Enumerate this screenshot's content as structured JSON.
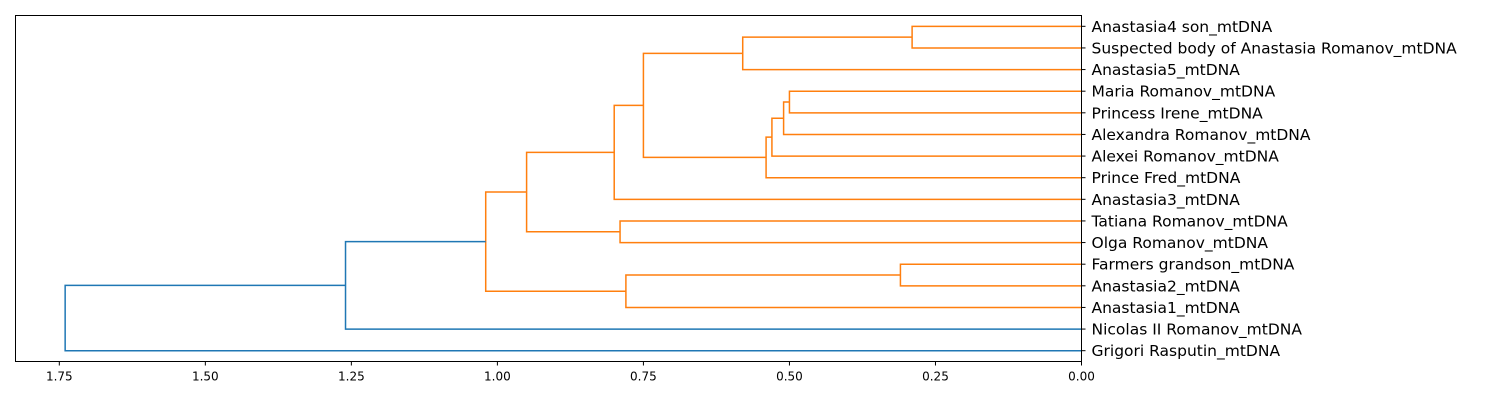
{
  "chart_data": {
    "type": "dendrogram",
    "orientation": "right",
    "title": "",
    "xlabel": "",
    "ylabel": "",
    "xlim": [
      1.825,
      0.0
    ],
    "x_ticks": [
      "1.75",
      "1.50",
      "1.25",
      "1.00",
      "0.75",
      "0.50",
      "0.25",
      "0.00"
    ],
    "x_tick_values": [
      1.75,
      1.5,
      1.25,
      1.0,
      0.75,
      0.5,
      0.25,
      0.0
    ],
    "colors": {
      "cluster": "#ff7f0e",
      "above_threshold": "#1f77b4"
    },
    "leaves": [
      "Anastasia4 son_mtDNA",
      "Suspected body of Anastasia Romanov_mtDNA",
      "Anastasia5_mtDNA",
      "Maria Romanov_mtDNA",
      "Princess Irene_mtDNA",
      "Alexandra Romanov_mtDNA",
      "Alexei Romanov_mtDNA",
      "Prince Fred_mtDNA",
      "Anastasia3_mtDNA",
      "Tatiana Romanov_mtDNA",
      "Olga Romanov_mtDNA",
      "Farmers grandson_mtDNA",
      "Anastasia2_mtDNA",
      "Anastasia1_mtDNA",
      "Nicolas II Romanov_mtDNA",
      "Grigori Rasputin_mtDNA"
    ],
    "merges": [
      {
        "id": "n1",
        "children": [
          "L0",
          "L1"
        ],
        "distance": 0.29,
        "color": "cluster"
      },
      {
        "id": "n2",
        "children": [
          "n1",
          "L2"
        ],
        "distance": 0.58,
        "color": "cluster"
      },
      {
        "id": "n3",
        "children": [
          "L3",
          "L4"
        ],
        "distance": 0.5,
        "color": "cluster"
      },
      {
        "id": "n4",
        "children": [
          "n3",
          "L5"
        ],
        "distance": 0.51,
        "color": "cluster"
      },
      {
        "id": "n5",
        "children": [
          "n4",
          "L6"
        ],
        "distance": 0.53,
        "color": "cluster"
      },
      {
        "id": "n6",
        "children": [
          "n5",
          "L7"
        ],
        "distance": 0.54,
        "color": "cluster"
      },
      {
        "id": "n7",
        "children": [
          "n2",
          "n6"
        ],
        "distance": 0.75,
        "color": "cluster"
      },
      {
        "id": "n8",
        "children": [
          "n7",
          "L8"
        ],
        "distance": 0.8,
        "color": "cluster"
      },
      {
        "id": "n9",
        "children": [
          "L9",
          "L10"
        ],
        "distance": 0.79,
        "color": "cluster"
      },
      {
        "id": "n10",
        "children": [
          "n8",
          "n9"
        ],
        "distance": 0.95,
        "color": "cluster"
      },
      {
        "id": "n11",
        "children": [
          "L11",
          "L12"
        ],
        "distance": 0.31,
        "color": "cluster"
      },
      {
        "id": "n12",
        "children": [
          "n11",
          "L13"
        ],
        "distance": 0.78,
        "color": "cluster"
      },
      {
        "id": "n13",
        "children": [
          "n10",
          "n12"
        ],
        "distance": 1.02,
        "color": "cluster"
      },
      {
        "id": "n14",
        "children": [
          "n13",
          "L14"
        ],
        "distance": 1.26,
        "color": "above_threshold"
      },
      {
        "id": "n15",
        "children": [
          "n14",
          "L15"
        ],
        "distance": 1.74,
        "color": "above_threshold"
      }
    ]
  }
}
